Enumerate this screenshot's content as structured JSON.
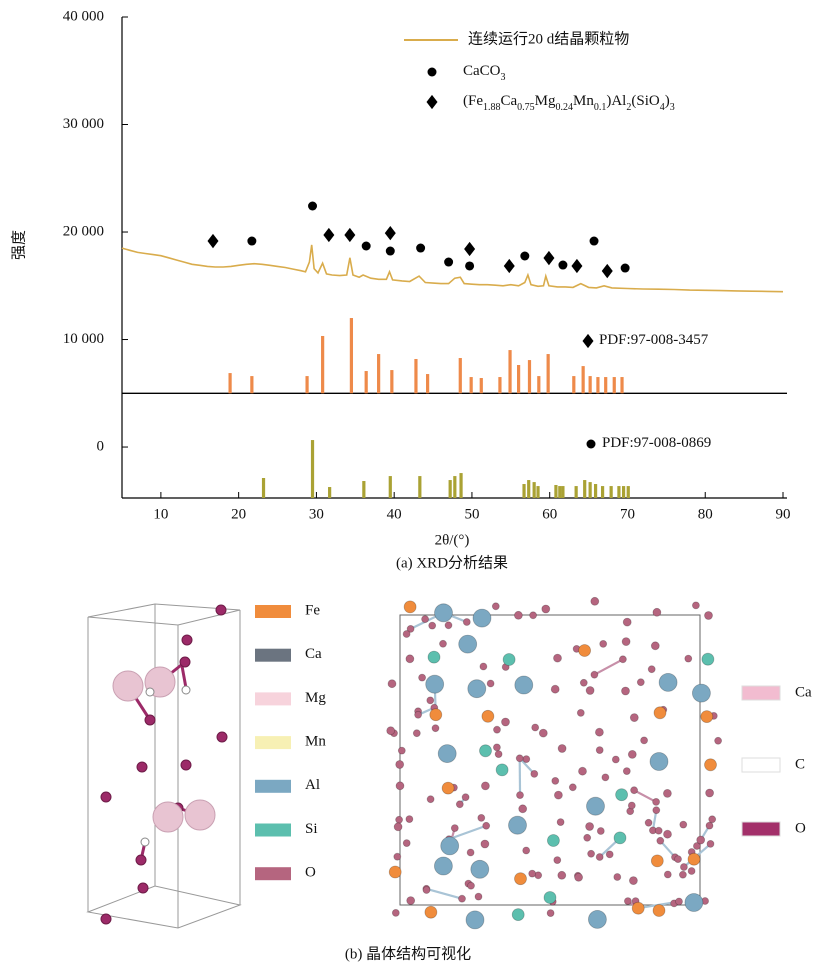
{
  "chart_data": {
    "type": "line",
    "y_label": "强度",
    "x_label": "2θ/(°)",
    "caption": "(a) XRD分析结果",
    "xlim": [
      5,
      90
    ],
    "ylim": [
      -4740,
      40000
    ],
    "xticks": [
      10,
      20,
      30,
      40,
      50,
      60,
      70,
      80,
      90
    ],
    "yticks": [
      {
        "value": 40000,
        "label": "40 000"
      },
      {
        "value": 30000,
        "label": "30 000"
      },
      {
        "value": 20000,
        "label": "20 000"
      },
      {
        "value": 10000,
        "label": "10 000"
      },
      0
    ],
    "series": [
      {
        "name": "连续运行20 d结晶颗粒物",
        "type": "line",
        "color": "#d9ac4c",
        "x": [
          5,
          6,
          7,
          8,
          9,
          10,
          11,
          12,
          13,
          14,
          15,
          16,
          17,
          18,
          19,
          20,
          21,
          22,
          23,
          24,
          25,
          26,
          27,
          28,
          28.6,
          29.1,
          29.4,
          29.7,
          30.2,
          30.8,
          31.3,
          32,
          33,
          33.9,
          34.3,
          34.7,
          35.5,
          36,
          37,
          38,
          39,
          39.4,
          39.8,
          41,
          42,
          43.2,
          44,
          45,
          46,
          47,
          47.8,
          48.5,
          49,
          50,
          51,
          52,
          53,
          54,
          55,
          56,
          56.8,
          57.2,
          57.6,
          58.5,
          59.2,
          59.5,
          59.9,
          61,
          62,
          63,
          64,
          65,
          66,
          67,
          68,
          70,
          72,
          74,
          76,
          78,
          80,
          82,
          84,
          86,
          88,
          90
        ],
        "values": [
          18500,
          18300,
          18100,
          18000,
          17900,
          17800,
          17600,
          17400,
          17200,
          17000,
          16900,
          16800,
          16750,
          16750,
          16800,
          16900,
          17000,
          17050,
          17000,
          16900,
          16800,
          16700,
          16550,
          16400,
          16300,
          17200,
          18800,
          16600,
          16200,
          17100,
          16100,
          16000,
          15950,
          16000,
          17600,
          16000,
          15800,
          16000,
          15700,
          15600,
          15600,
          16300,
          15550,
          15450,
          15400,
          15900,
          15300,
          15250,
          15200,
          15200,
          15700,
          15800,
          15200,
          15150,
          15100,
          15100,
          15050,
          15000,
          15100,
          15000,
          15300,
          16000,
          15100,
          14950,
          15000,
          15900,
          15000,
          14900,
          14900,
          14850,
          15200,
          14850,
          14800,
          15000,
          14800,
          14750,
          14700,
          14680,
          14650,
          14600,
          14580,
          14550,
          14520,
          14500,
          14480,
          14450
        ]
      },
      {
        "name": "CaCO3",
        "type": "scatter",
        "marker": "circle",
        "color": "#000000",
        "x": [
          21.7,
          29.5,
          36.4,
          39.5,
          43.4,
          47.0,
          49.7,
          56.8,
          61.7,
          65.7,
          69.7
        ],
        "values": [
          19160,
          22420,
          18700,
          18230,
          18510,
          17210,
          16840,
          17770,
          16930,
          19160,
          16650
        ]
      },
      {
        "name": "(Fe1.88Ca0.75Mg0.24Mn0.1)Al2(SiO4)3",
        "type": "scatter",
        "marker": "diamond",
        "color": "#000000",
        "x": [
          16.7,
          31.6,
          34.3,
          39.5,
          49.7,
          54.8,
          59.9,
          63.5,
          67.4
        ],
        "values": [
          19160,
          19720,
          19720,
          19900,
          18420,
          16840,
          17580,
          16840,
          16370
        ]
      },
      {
        "name": "PDF:97-008-3457",
        "type": "stick",
        "marker": "diamond",
        "color": "#ee8a4a",
        "baseline": 5000,
        "x": [
          18.9,
          21.7,
          28.8,
          30.8,
          34.5,
          36.4,
          38.0,
          39.7,
          42.8,
          44.3,
          48.5,
          49.9,
          51.2,
          53.6,
          54.9,
          56.0,
          57.4,
          58.6,
          59.8,
          63.1,
          64.3,
          65.2,
          66.2,
          67.2,
          68.3,
          69.3
        ],
        "values": [
          6880,
          6600,
          6600,
          10330,
          12000,
          7070,
          8650,
          7160,
          8190,
          6790,
          8280,
          6510,
          6420,
          6510,
          9020,
          7630,
          8090,
          6600,
          8650,
          6600,
          7530,
          6600,
          6510,
          6510,
          6510,
          6510
        ]
      },
      {
        "name": "PDF:97-008-0869",
        "type": "stick",
        "marker": "circle",
        "color": "#aaa234",
        "x": [
          23.2,
          29.5,
          31.7,
          36.1,
          39.5,
          43.3,
          47.2,
          47.8,
          48.6,
          56.7,
          57.3,
          58.0,
          58.5,
          60.8,
          61.3,
          61.7,
          63.4,
          64.5,
          65.2,
          65.9,
          66.8,
          67.9,
          68.9,
          69.5,
          70.1
        ],
        "values": [
          -2880,
          650,
          -3720,
          -3160,
          -2700,
          -2700,
          -3070,
          -2700,
          -2420,
          -3440,
          -3070,
          -3260,
          -3630,
          -3530,
          -3630,
          -3630,
          -3630,
          -3070,
          -3260,
          -3440,
          -3630,
          -3630,
          -3630,
          -3630,
          -3630
        ]
      }
    ]
  },
  "structure": {
    "caption": "(b) 晶体结构可视化",
    "left_legend": [
      {
        "label": "Fe",
        "color": "#f08c3c"
      },
      {
        "label": "Ca",
        "color": "#6b7480"
      },
      {
        "label": "Mg",
        "color": "#f7d3dc"
      },
      {
        "label": "Mn",
        "color": "#f7f0b4"
      },
      {
        "label": "Al",
        "color": "#7ba8c2"
      },
      {
        "label": "Si",
        "color": "#5cbfae"
      },
      {
        "label": "O",
        "color": "#b5657f"
      }
    ],
    "right_legend": [
      {
        "label": "Ca",
        "color": "#f2bcd0"
      },
      {
        "label": "C",
        "color": "#ffffff"
      },
      {
        "label": "O",
        "color": "#a3306a"
      }
    ]
  }
}
